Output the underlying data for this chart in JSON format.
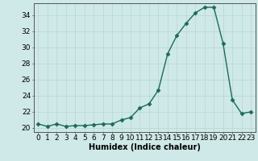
{
  "x": [
    0,
    1,
    2,
    3,
    4,
    5,
    6,
    7,
    8,
    9,
    10,
    11,
    12,
    13,
    14,
    15,
    16,
    17,
    18,
    19,
    20,
    21,
    22,
    23
  ],
  "y": [
    20.5,
    20.2,
    20.5,
    20.2,
    20.3,
    20.3,
    20.4,
    20.5,
    20.5,
    21.0,
    21.3,
    22.5,
    23.0,
    24.7,
    29.2,
    31.5,
    33.0,
    34.3,
    35.0,
    35.0,
    30.5,
    23.5,
    21.8,
    22.0
  ],
  "line_color": "#1a6b5a",
  "marker": "D",
  "marker_size": 2.5,
  "line_width": 1.0,
  "xlabel": "Humidex (Indice chaleur)",
  "xlim": [
    -0.5,
    23.5
  ],
  "ylim": [
    19.5,
    35.5
  ],
  "yticks": [
    20,
    22,
    24,
    26,
    28,
    30,
    32,
    34
  ],
  "xticks": [
    0,
    1,
    2,
    3,
    4,
    5,
    6,
    7,
    8,
    9,
    10,
    11,
    12,
    13,
    14,
    15,
    16,
    17,
    18,
    19,
    20,
    21,
    22,
    23
  ],
  "xtick_labels": [
    "0",
    "1",
    "2",
    "3",
    "4",
    "5",
    "6",
    "7",
    "8",
    "9",
    "10",
    "11",
    "12",
    "13",
    "14",
    "15",
    "16",
    "17",
    "18",
    "19",
    "20",
    "21",
    "22",
    "23"
  ],
  "bg_color": "#cee9e8",
  "grid_color": "#b8d4d3",
  "axis_color": "#555555",
  "xlabel_fontsize": 7,
  "tick_fontsize": 6.5
}
